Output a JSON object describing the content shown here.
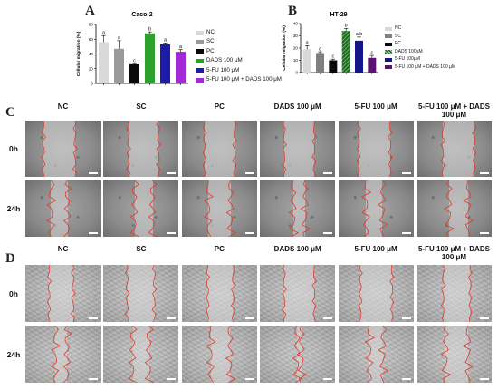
{
  "panels": {
    "A": "A",
    "B": "B",
    "C": "C",
    "D": "D"
  },
  "chart_data": [
    {
      "type": "bar",
      "title": "Caco-2",
      "ylabel": "Cellular migration (%)",
      "ylim": [
        0,
        80
      ],
      "yticks": [
        "0",
        "20",
        "40",
        "60",
        "80"
      ],
      "categories": [
        "NC",
        "SC",
        "PC",
        "DADS 100 μM",
        "5-FU 100 μM",
        "5-FU 100 μM + DADS 100 μM"
      ],
      "values": [
        56,
        47,
        26,
        68,
        53,
        43
      ],
      "errors": [
        9,
        11,
        1,
        2,
        2,
        3
      ],
      "labels": [
        "a",
        "a",
        "c",
        "b",
        "a",
        "a"
      ],
      "colors": [
        "#d9d9d9",
        "#9a9a9a",
        "#0a0a0a",
        "#2ea02e",
        "#1c1ca6",
        "#a22bd8"
      ],
      "hatched": [
        false,
        false,
        false,
        false,
        false,
        false
      ],
      "legend": [
        "NC",
        "SC",
        "PC",
        "DADS 100 μM",
        "5-FU 100 μM",
        "5-FU 100 μM + DADS 100 μM"
      ]
    },
    {
      "type": "bar",
      "title": "HT-29",
      "ylabel": "Cellular migration (%)",
      "ylim": [
        0,
        40
      ],
      "yticks": [
        "0",
        "10",
        "20",
        "30",
        "40"
      ],
      "categories": [
        "NC",
        "SC",
        "PC",
        "DADS 100µM",
        "5-FU 100µM",
        "5-FU 100 µM + DADS 100 µM"
      ],
      "values": [
        19,
        16,
        10,
        34,
        26,
        12
      ],
      "errors": [
        3,
        1,
        1,
        2,
        3,
        2
      ],
      "labels": [
        "a",
        "a",
        "c",
        "b",
        "a,b",
        "c"
      ],
      "colors": [
        "#d9d9d9",
        "#7f7f7f",
        "#0a0a0a",
        "#1f6b1f",
        "#14148a",
        "#5a1470"
      ],
      "hatched": [
        false,
        false,
        false,
        true,
        false,
        false
      ],
      "legend": [
        "NC",
        "SC",
        "PC",
        "DADS 100µM",
        "5-FU 100µM",
        "5-FU 100 µM + DADS 100 µM"
      ]
    }
  ],
  "grid_c": {
    "columns": [
      "NC",
      "SC",
      "PC",
      "DADS 100 μM",
      "5-FU 100 μM",
      "5-FU 100 μM + DADS 100 μM"
    ],
    "rows": [
      "0h",
      "24h"
    ]
  },
  "grid_d": {
    "columns": [
      "NC",
      "SC",
      "PC",
      "DADS 100 μM",
      "5-FU 100 μM",
      "5-FU 100 μM + DADS 100 μM"
    ],
    "rows": [
      "0h",
      "24h"
    ]
  }
}
